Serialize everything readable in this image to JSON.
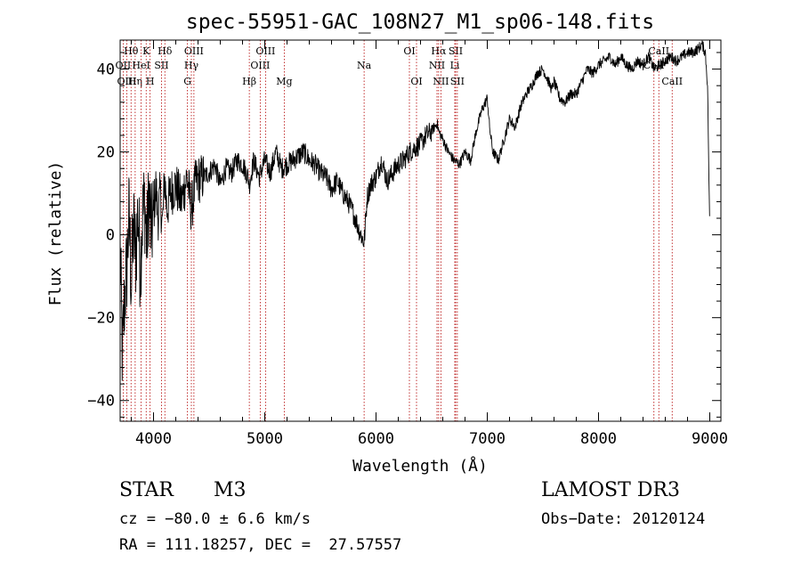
{
  "chart_data": {
    "type": "line",
    "title": "spec-55951-GAC_108N27_M1_sp06-148.fits",
    "xlabel": "Wavelength (Å)",
    "ylabel": "Flux (relative)",
    "xlim": [
      3700,
      9100
    ],
    "ylim": [
      -45,
      47
    ],
    "xticks": [
      4000,
      5000,
      6000,
      7000,
      8000,
      9000
    ],
    "yticks": [
      -40,
      -20,
      0,
      20,
      40
    ],
    "series": [
      {
        "name": "flux",
        "x": [
          3700,
          3720,
          3740,
          3760,
          3780,
          3800,
          3820,
          3840,
          3860,
          3880,
          3900,
          3920,
          3940,
          3960,
          3980,
          4000,
          4020,
          4040,
          4060,
          4080,
          4100,
          4120,
          4150,
          4200,
          4250,
          4300,
          4340,
          4380,
          4450,
          4500,
          4550,
          4600,
          4650,
          4700,
          4750,
          4800,
          4850,
          4861,
          4900,
          4950,
          5000,
          5050,
          5100,
          5150,
          5200,
          5250,
          5300,
          5350,
          5400,
          5450,
          5500,
          5550,
          5600,
          5650,
          5700,
          5750,
          5800,
          5850,
          5893,
          5920,
          5950,
          6000,
          6050,
          6100,
          6150,
          6200,
          6250,
          6300,
          6350,
          6400,
          6450,
          6500,
          6550,
          6563,
          6600,
          6650,
          6700,
          6750,
          6800,
          6850,
          6900,
          6950,
          7000,
          7020,
          7050,
          7100,
          7150,
          7200,
          7250,
          7300,
          7350,
          7400,
          7450,
          7500,
          7550,
          7580,
          7600,
          7650,
          7700,
          7750,
          7800,
          7850,
          7900,
          7950,
          8000,
          8050,
          8100,
          8150,
          8200,
          8250,
          8300,
          8350,
          8400,
          8450,
          8500,
          8550,
          8600,
          8650,
          8700,
          8750,
          8800,
          8850,
          8900,
          8930,
          8960,
          8980,
          9000
        ],
        "y": [
          -3,
          -30,
          -15,
          -8,
          5,
          -12,
          2,
          -5,
          6,
          -8,
          4,
          8,
          -2,
          10,
          0,
          5,
          12,
          4,
          10,
          2,
          14,
          6,
          10,
          12,
          8,
          14,
          6,
          13,
          14,
          15,
          17,
          12,
          16,
          15,
          18,
          17,
          14,
          12,
          18,
          14,
          18,
          15,
          20,
          16,
          17,
          18,
          19,
          20,
          18,
          17,
          15,
          14,
          11,
          13,
          10,
          8,
          5,
          1,
          -2,
          9,
          12,
          14,
          18,
          13,
          15,
          17,
          18,
          20,
          21,
          22,
          24,
          25,
          27,
          25,
          23,
          20,
          18,
          17,
          20,
          18,
          25,
          30,
          33,
          26,
          20,
          18,
          23,
          28,
          26,
          31,
          34,
          36,
          39,
          40,
          37,
          35,
          37,
          33,
          32,
          34,
          34,
          37,
          40,
          39,
          41,
          42,
          43,
          41,
          43,
          41,
          40,
          42,
          41,
          43,
          40,
          41,
          42,
          43,
          42,
          43,
          44,
          44,
          45,
          46,
          44,
          36,
          0
        ]
      }
    ],
    "lines": [
      {
        "label": "Hθ",
        "x": 3798,
        "row": 1
      },
      {
        "label": "OII",
        "x": 3727,
        "row": 2
      },
      {
        "label": "OIII",
        "x": 3760,
        "row": 3
      },
      {
        "label": "Hη",
        "x": 3835,
        "row": 3
      },
      {
        "label": "K",
        "x": 3934,
        "row": 1
      },
      {
        "label": "H",
        "x": 3969,
        "row": 3
      },
      {
        "label": "HeI",
        "x": 3889,
        "row": 2
      },
      {
        "label": "SII",
        "x": 4072,
        "row": 2
      },
      {
        "label": "Hδ",
        "x": 4102,
        "row": 1
      },
      {
        "label": "OIII",
        "x": 4363,
        "row": 1
      },
      {
        "label": "Hγ",
        "x": 4340,
        "row": 2
      },
      {
        "label": "G",
        "x": 4305,
        "row": 3
      },
      {
        "label": "OIII",
        "x": 5007,
        "row": 1
      },
      {
        "label": "OIII",
        "x": 4959,
        "row": 2
      },
      {
        "label": "Hβ",
        "x": 4861,
        "row": 3
      },
      {
        "label": "Mg",
        "x": 5175,
        "row": 3
      },
      {
        "label": "Na",
        "x": 5893,
        "row": 2
      },
      {
        "label": "OI",
        "x": 6300,
        "row": 1
      },
      {
        "label": "OI",
        "x": 6364,
        "row": 3
      },
      {
        "label": "Hα",
        "x": 6563,
        "row": 1
      },
      {
        "label": "SII",
        "x": 6716,
        "row": 1
      },
      {
        "label": "NII",
        "x": 6548,
        "row": 2
      },
      {
        "label": "Li",
        "x": 6708,
        "row": 2
      },
      {
        "label": "NII",
        "x": 6583,
        "row": 3
      },
      {
        "label": "SII",
        "x": 6731,
        "row": 3
      },
      {
        "label": "CaII",
        "x": 8542,
        "row": 1
      },
      {
        "label": "CaII",
        "x": 8498,
        "row": 2
      },
      {
        "label": "CaII",
        "x": 8662,
        "row": 3
      }
    ]
  },
  "info": {
    "object_class": "STAR",
    "subclass": "M3",
    "survey": "LAMOST DR3",
    "redshift": "cz = −80.0 ± 6.6 km/s",
    "obs_date": "Obs−Date: 20120124",
    "coords": "RA = 111.18257, DEC =  27.57557"
  }
}
